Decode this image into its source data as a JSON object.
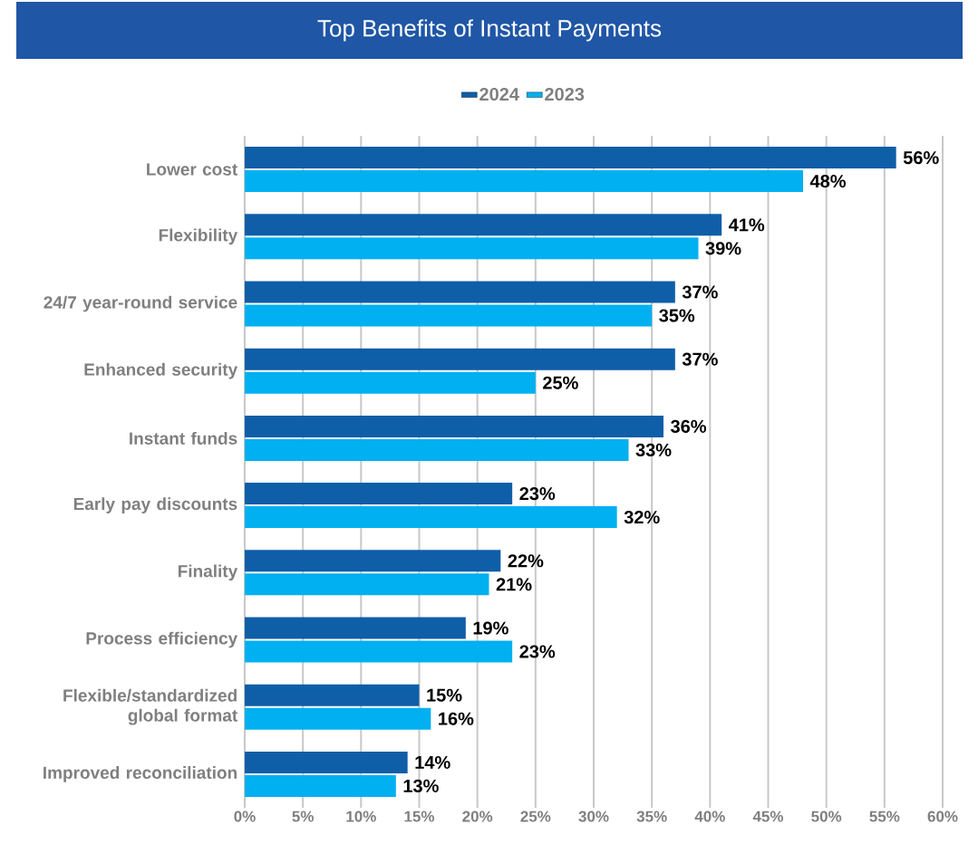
{
  "chart_data": {
    "type": "bar",
    "orientation": "horizontal",
    "title": "Top Benefits of Instant Payments",
    "categories": [
      "Lower cost",
      "Flexibility",
      "24/7 year-round service",
      "Enhanced security",
      "Instant funds",
      "Early pay discounts",
      "Finality",
      "Process efficiency",
      "Flexible/standardized global format",
      "Improved reconciliation"
    ],
    "series": [
      {
        "name": "2024",
        "color": "#0f5ea8",
        "values": [
          56,
          41,
          37,
          37,
          36,
          23,
          22,
          19,
          15,
          14
        ],
        "value_labels": [
          "56%",
          "41%",
          "37%",
          "37%",
          "36%",
          "23%",
          "22%",
          "19%",
          "15%",
          "14%"
        ]
      },
      {
        "name": "2023",
        "color": "#00b0f0",
        "values": [
          48,
          39,
          35,
          25,
          33,
          32,
          21,
          23,
          16,
          13
        ],
        "value_labels": [
          "48%",
          "39%",
          "35%",
          "25%",
          "33%",
          "32%",
          "21%",
          "23%",
          "16%",
          "13%"
        ]
      }
    ],
    "xlim": [
      0,
      60
    ],
    "xticks": [
      {
        "value": 0,
        "label": "0%"
      },
      {
        "value": 5,
        "label": "5%"
      },
      {
        "value": 10,
        "label": "10%"
      },
      {
        "value": 15,
        "label": "15%"
      },
      {
        "value": 20,
        "label": "20%"
      },
      {
        "value": 25,
        "label": "25%"
      },
      {
        "value": 30,
        "label": "30%"
      },
      {
        "value": 35,
        "label": "35%"
      },
      {
        "value": 40,
        "label": "40%"
      },
      {
        "value": 45,
        "label": "45%"
      },
      {
        "value": 50,
        "label": "50%"
      },
      {
        "value": 55,
        "label": "55%"
      },
      {
        "value": 60,
        "label": "60%"
      }
    ],
    "grid": "x",
    "legend": "top"
  }
}
